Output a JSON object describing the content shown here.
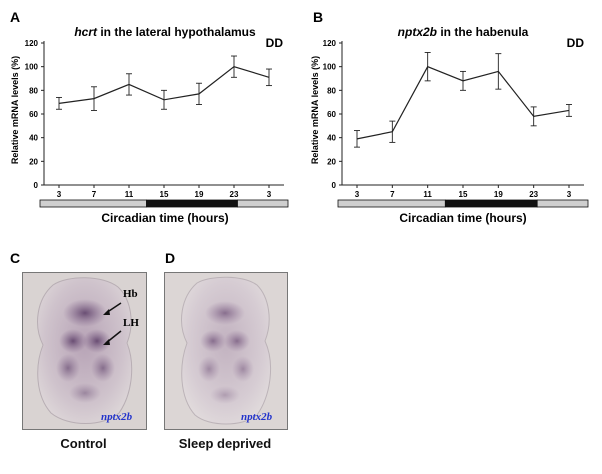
{
  "panels": {
    "A": "A",
    "B": "B",
    "C": "C",
    "D": "D"
  },
  "chart_data": [
    {
      "type": "line",
      "title_gene": "hcrt",
      "title_rest": " in the lateral hypothalamus",
      "condition": "DD",
      "xlabel": "Circadian time (hours)",
      "ylabel": "Relative mRNA levels  (%)",
      "categories": [
        "3",
        "7",
        "11",
        "15",
        "19",
        "23",
        "3"
      ],
      "values": [
        69,
        73,
        85,
        72,
        77,
        100,
        91
      ],
      "errors": [
        5,
        10,
        9,
        8,
        9,
        9,
        7
      ],
      "ylim": [
        0,
        120
      ],
      "yticks": [
        "0",
        "20",
        "40",
        "60",
        "80",
        "100",
        "120"
      ],
      "light_bar": [
        "light",
        "dark",
        "light"
      ]
    },
    {
      "type": "line",
      "title_gene": "nptx2b",
      "title_rest": " in the habenula",
      "condition": "DD",
      "xlabel": "Circadian time (hours)",
      "ylabel": "Relative mRNA levels  (%)",
      "categories": [
        "3",
        "7",
        "11",
        "15",
        "19",
        "23",
        "3"
      ],
      "values": [
        39,
        45,
        100,
        88,
        96,
        58,
        63
      ],
      "errors": [
        7,
        9,
        12,
        8,
        15,
        8,
        5
      ],
      "ylim": [
        0,
        120
      ],
      "yticks": [
        "0",
        "20",
        "40",
        "60",
        "80",
        "100",
        "120"
      ],
      "light_bar": [
        "light",
        "dark",
        "light"
      ]
    }
  ],
  "images": {
    "c": {
      "label_hb": "Hb",
      "label_lh": "LH",
      "gene": "nptx2b",
      "caption": "Control"
    },
    "d": {
      "gene": "nptx2b",
      "caption": "Sleep deprived"
    }
  },
  "colors": {
    "line": "#222222",
    "light_period": "#cfcfcf",
    "dark_period": "#111111",
    "gene_label": "#2233cc"
  }
}
